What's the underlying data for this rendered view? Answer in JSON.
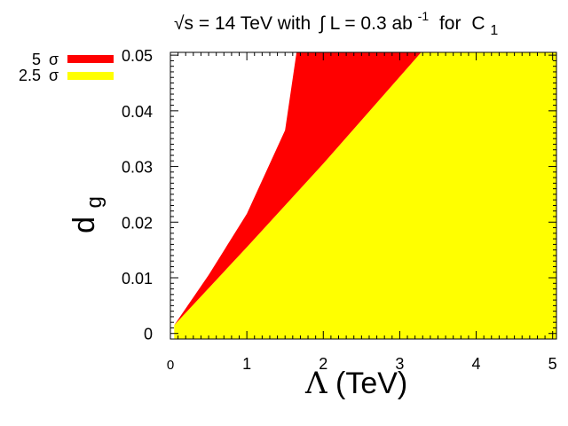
{
  "chart_data": {
    "type": "area",
    "title": {
      "prefix": "√s = 14 TeV with",
      "integral": "∫",
      "lumi": "L = 0.3 ab",
      "lumi_sup": "-1",
      "mid": "for",
      "coef": "C",
      "coef_sub": "1"
    },
    "xlabel": {
      "symbol": "Λ",
      "text": " (TeV)"
    },
    "ylabel": {
      "base": "d",
      "sub": "g"
    },
    "xlim": [
      0,
      5.05
    ],
    "ylim": [
      -0.001,
      0.0505
    ],
    "xticks": [
      {
        "value": 0,
        "label": "0"
      },
      {
        "value": 1,
        "label": "1"
      },
      {
        "value": 2,
        "label": "2"
      },
      {
        "value": 3,
        "label": "3"
      },
      {
        "value": 4,
        "label": "4"
      },
      {
        "value": 5,
        "label": "5"
      }
    ],
    "yticks": [
      {
        "value": 0,
        "label": "0"
      },
      {
        "value": 0.01,
        "label": "0.01"
      },
      {
        "value": 0.02,
        "label": "0.02"
      },
      {
        "value": 0.03,
        "label": "0.03"
      },
      {
        "value": 0.04,
        "label": "0.04"
      },
      {
        "value": 0.05,
        "label": "0.05"
      }
    ],
    "legend_position": "top-left outside",
    "series": [
      {
        "name": "2.5 σ",
        "legend_num": "2.5",
        "color": "#ffff00",
        "boundary": [
          [
            0.05,
            0.0015
          ],
          [
            1.0,
            0.0155
          ],
          [
            2.0,
            0.0305
          ],
          [
            3.28,
            0.0505
          ]
        ]
      },
      {
        "name": "5 σ",
        "legend_num": "5",
        "color": "#ff0000",
        "boundary": [
          [
            0.05,
            0.0015
          ],
          [
            0.5,
            0.0105
          ],
          [
            1.0,
            0.0215
          ],
          [
            1.5,
            0.0365
          ],
          [
            1.65,
            0.0505
          ]
        ]
      }
    ]
  }
}
